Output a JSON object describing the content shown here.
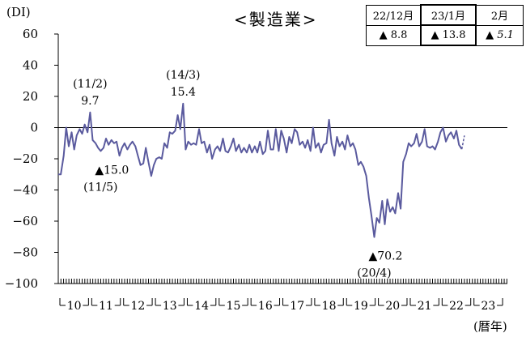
{
  "unit_top": "(DI)",
  "unit_bottom": "(暦年)",
  "chart_data": {
    "type": "line",
    "title": "<製造業>",
    "ylim": [
      -100,
      60
    ],
    "yticks": [
      60,
      40,
      20,
      0,
      -20,
      -40,
      -60,
      -80,
      -100
    ],
    "xtick_labels": [
      "10",
      "11",
      "12",
      "13",
      "14",
      "15",
      "16",
      "17",
      "18",
      "19",
      "20",
      "21",
      "22",
      "23"
    ],
    "x_start": 2010,
    "x_end": 2024.1,
    "series": [
      {
        "color": "#5a5a9e",
        "points": [
          [
            2010.0,
            -30
          ],
          [
            2010.08,
            -30
          ],
          [
            2010.17,
            -18
          ],
          [
            2010.25,
            0
          ],
          [
            2010.33,
            -12
          ],
          [
            2010.42,
            -3
          ],
          [
            2010.5,
            -14
          ],
          [
            2010.58,
            -5
          ],
          [
            2010.67,
            -1
          ],
          [
            2010.75,
            -4
          ],
          [
            2010.83,
            2
          ],
          [
            2010.92,
            -3
          ],
          [
            2011.0,
            9.7
          ],
          [
            2011.08,
            -8
          ],
          [
            2011.17,
            -10
          ],
          [
            2011.25,
            -13
          ],
          [
            2011.33,
            -15.0
          ],
          [
            2011.42,
            -13
          ],
          [
            2011.5,
            -7
          ],
          [
            2011.58,
            -11
          ],
          [
            2011.67,
            -8
          ],
          [
            2011.75,
            -10
          ],
          [
            2011.83,
            -9
          ],
          [
            2011.92,
            -18
          ],
          [
            2012.0,
            -13
          ],
          [
            2012.08,
            -10
          ],
          [
            2012.17,
            -14
          ],
          [
            2012.25,
            -11
          ],
          [
            2012.33,
            -9
          ],
          [
            2012.42,
            -12
          ],
          [
            2012.5,
            -18
          ],
          [
            2012.58,
            -24
          ],
          [
            2012.67,
            -23
          ],
          [
            2012.75,
            -13
          ],
          [
            2012.83,
            -22
          ],
          [
            2012.92,
            -31
          ],
          [
            2013.0,
            -24
          ],
          [
            2013.08,
            -20
          ],
          [
            2013.17,
            -19
          ],
          [
            2013.25,
            -20
          ],
          [
            2013.33,
            -10
          ],
          [
            2013.42,
            -13
          ],
          [
            2013.5,
            -3
          ],
          [
            2013.58,
            -4
          ],
          [
            2013.67,
            -2
          ],
          [
            2013.75,
            8
          ],
          [
            2013.83,
            -1
          ],
          [
            2013.92,
            15.4
          ],
          [
            2014.0,
            -14
          ],
          [
            2014.08,
            -9
          ],
          [
            2014.17,
            -11
          ],
          [
            2014.25,
            -10
          ],
          [
            2014.33,
            -11
          ],
          [
            2014.42,
            -1
          ],
          [
            2014.5,
            -10
          ],
          [
            2014.58,
            -9
          ],
          [
            2014.67,
            -16
          ],
          [
            2014.75,
            -11
          ],
          [
            2014.83,
            -20
          ],
          [
            2014.92,
            -14
          ],
          [
            2015.0,
            -12
          ],
          [
            2015.08,
            -15
          ],
          [
            2015.17,
            -7
          ],
          [
            2015.25,
            -15
          ],
          [
            2015.33,
            -16
          ],
          [
            2015.42,
            -12
          ],
          [
            2015.5,
            -7
          ],
          [
            2015.58,
            -15
          ],
          [
            2015.67,
            -11
          ],
          [
            2015.75,
            -16
          ],
          [
            2015.83,
            -13
          ],
          [
            2015.92,
            -16
          ],
          [
            2016.0,
            -11
          ],
          [
            2016.08,
            -16
          ],
          [
            2016.17,
            -12
          ],
          [
            2016.25,
            -16
          ],
          [
            2016.33,
            -9
          ],
          [
            2016.42,
            -17
          ],
          [
            2016.5,
            -15
          ],
          [
            2016.58,
            -2
          ],
          [
            2016.67,
            -14
          ],
          [
            2016.75,
            -14
          ],
          [
            2016.83,
            -1
          ],
          [
            2016.92,
            -15
          ],
          [
            2017.0,
            -2
          ],
          [
            2017.08,
            -7
          ],
          [
            2017.17,
            -16
          ],
          [
            2017.25,
            -6
          ],
          [
            2017.33,
            -10
          ],
          [
            2017.42,
            -1
          ],
          [
            2017.5,
            -3
          ],
          [
            2017.58,
            -11
          ],
          [
            2017.67,
            -9
          ],
          [
            2017.75,
            -13
          ],
          [
            2017.83,
            -8
          ],
          [
            2017.92,
            -15
          ],
          [
            2018.0,
            0
          ],
          [
            2018.08,
            -13
          ],
          [
            2018.17,
            -10
          ],
          [
            2018.25,
            -16
          ],
          [
            2018.33,
            -11
          ],
          [
            2018.42,
            -10
          ],
          [
            2018.5,
            5
          ],
          [
            2018.58,
            -10
          ],
          [
            2018.67,
            -18
          ],
          [
            2018.75,
            -6
          ],
          [
            2018.83,
            -12
          ],
          [
            2018.92,
            -9
          ],
          [
            2019.0,
            -14
          ],
          [
            2019.08,
            -5
          ],
          [
            2019.17,
            -12
          ],
          [
            2019.25,
            -10
          ],
          [
            2019.33,
            -14
          ],
          [
            2019.42,
            -24
          ],
          [
            2019.5,
            -22
          ],
          [
            2019.58,
            -25
          ],
          [
            2019.67,
            -31
          ],
          [
            2019.75,
            -45
          ],
          [
            2019.83,
            -56
          ],
          [
            2019.92,
            -70.2
          ],
          [
            2020.0,
            -58
          ],
          [
            2020.08,
            -61
          ],
          [
            2020.17,
            -47
          ],
          [
            2020.25,
            -62
          ],
          [
            2020.33,
            -46
          ],
          [
            2020.42,
            -54
          ],
          [
            2020.5,
            -51
          ],
          [
            2020.58,
            -55
          ],
          [
            2020.67,
            -42
          ],
          [
            2020.75,
            -52
          ],
          [
            2020.83,
            -22
          ],
          [
            2020.92,
            -17
          ],
          [
            2021.0,
            -10
          ],
          [
            2021.08,
            -12
          ],
          [
            2021.17,
            -10
          ],
          [
            2021.25,
            -4
          ],
          [
            2021.33,
            -12
          ],
          [
            2021.42,
            -9
          ],
          [
            2021.5,
            -1
          ],
          [
            2021.58,
            -12
          ],
          [
            2021.67,
            -13
          ],
          [
            2021.75,
            -12
          ],
          [
            2021.83,
            -14
          ],
          [
            2021.92,
            -9
          ],
          [
            2022.0,
            -3
          ],
          [
            2022.08,
            0
          ],
          [
            2022.17,
            -9
          ],
          [
            2022.25,
            -5
          ],
          [
            2022.33,
            -3
          ],
          [
            2022.42,
            -7
          ],
          [
            2022.5,
            -2
          ],
          [
            2022.58,
            -11
          ],
          [
            2022.67,
            -13.8
          ]
        ],
        "dashed_points": [
          [
            2022.67,
            -13.8
          ],
          [
            2022.75,
            -5.1
          ]
        ]
      }
    ],
    "annotations": [
      {
        "lines": [
          "(11/2)",
          "9.7"
        ],
        "x": 2011.0,
        "y": 9.7,
        "anchor": "above"
      },
      {
        "lines": [
          "(14/3)",
          "15.4"
        ],
        "x": 2013.92,
        "y": 15.4,
        "anchor": "above"
      },
      {
        "lines": [
          "▲15.0",
          "(11/5)"
        ],
        "x": 2011.33,
        "y": -15.0,
        "anchor": "below"
      },
      {
        "lines": [
          "▲70.2",
          "(20/4)"
        ],
        "x": 2019.92,
        "y": -70.2,
        "anchor": "below"
      }
    ]
  },
  "inset_table": {
    "headers": [
      "22/12月",
      "23/1月",
      "2月"
    ],
    "values": [
      "▲ 8.8",
      "▲ 13.8",
      "▲ 5.1"
    ]
  }
}
